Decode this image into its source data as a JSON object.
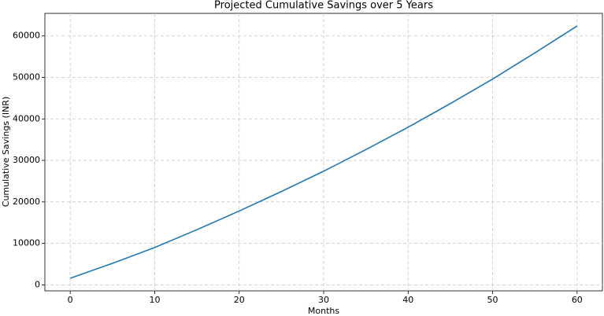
{
  "chart_data": {
    "type": "line",
    "title": "Projected Cumulative Savings over 5 Years",
    "x_label": "Months",
    "y_label": "Cumulative Savings (INR)",
    "x": [
      0,
      5,
      10,
      15,
      20,
      25,
      30,
      35,
      40,
      45,
      50,
      55,
      60
    ],
    "values": [
      1600,
      5200,
      9000,
      13300,
      17800,
      22500,
      27400,
      32600,
      38000,
      43700,
      49600,
      55900,
      62400
    ],
    "color": "#1f77b4",
    "xlim": [
      -3,
      63
    ],
    "xticks": [
      0,
      10,
      20,
      30,
      40,
      50,
      60
    ],
    "ylim": [
      -1440,
      65440
    ],
    "yticks": [
      0,
      10000,
      20000,
      30000,
      40000,
      50000,
      60000
    ],
    "grid": true
  }
}
